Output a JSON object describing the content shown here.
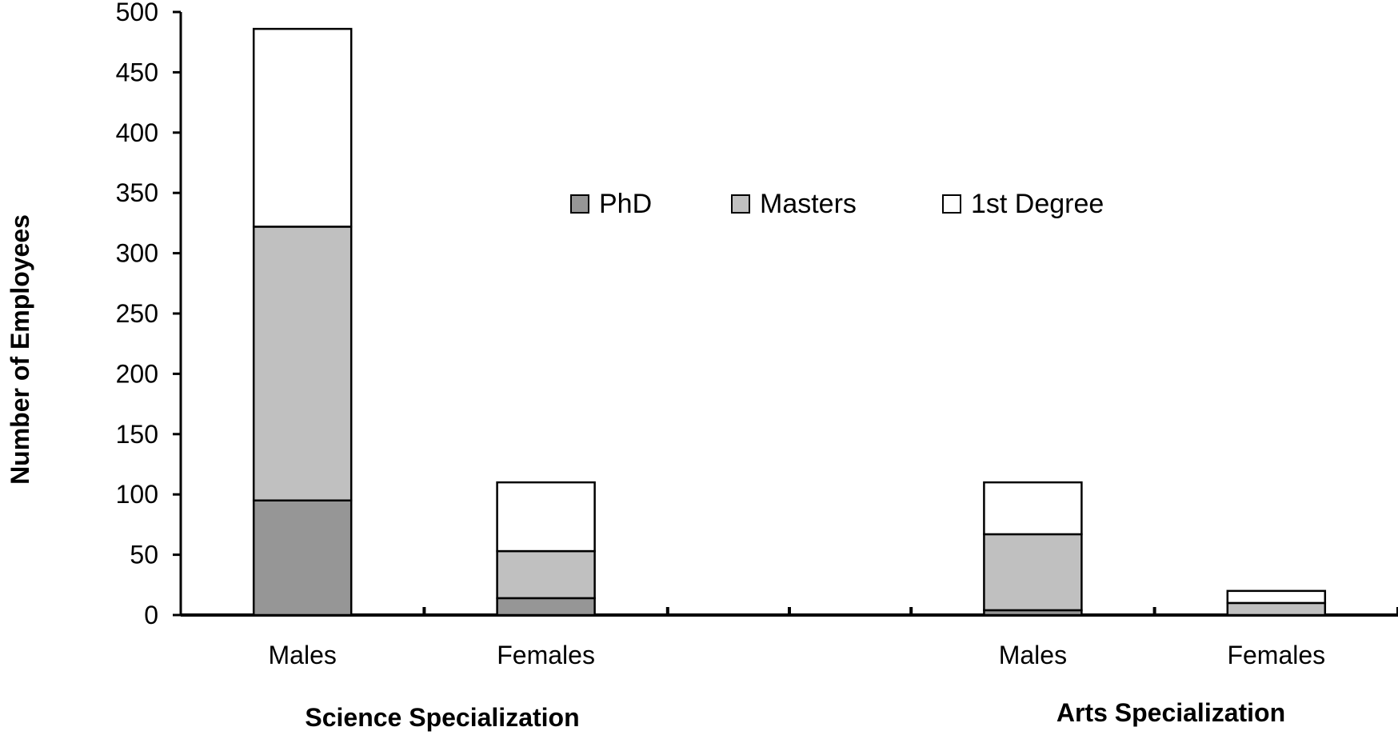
{
  "chart_data": {
    "type": "bar",
    "stacked": true,
    "ylabel": "Number of Employees",
    "ylim": [
      0,
      500
    ],
    "yticks": [
      0,
      50,
      100,
      150,
      200,
      250,
      300,
      350,
      400,
      450,
      500
    ],
    "categories": [
      "Males",
      "Females",
      "Males",
      "Females"
    ],
    "groups": [
      {
        "label": "Science Specialization",
        "categories": [
          "Males",
          "Females"
        ]
      },
      {
        "label": "Arts Specialization",
        "categories": [
          "Males",
          "Females"
        ]
      }
    ],
    "series": [
      {
        "name": "PhD",
        "color": "#969696",
        "values": [
          95,
          14,
          4,
          0
        ]
      },
      {
        "name": "Masters",
        "color": "#c0c0c0",
        "values": [
          227,
          39,
          63,
          10
        ]
      },
      {
        "name": "1st Degree",
        "color": "#ffffff",
        "values": [
          164,
          57,
          43,
          10
        ]
      }
    ],
    "legend_position": "top-center",
    "grid": false
  }
}
